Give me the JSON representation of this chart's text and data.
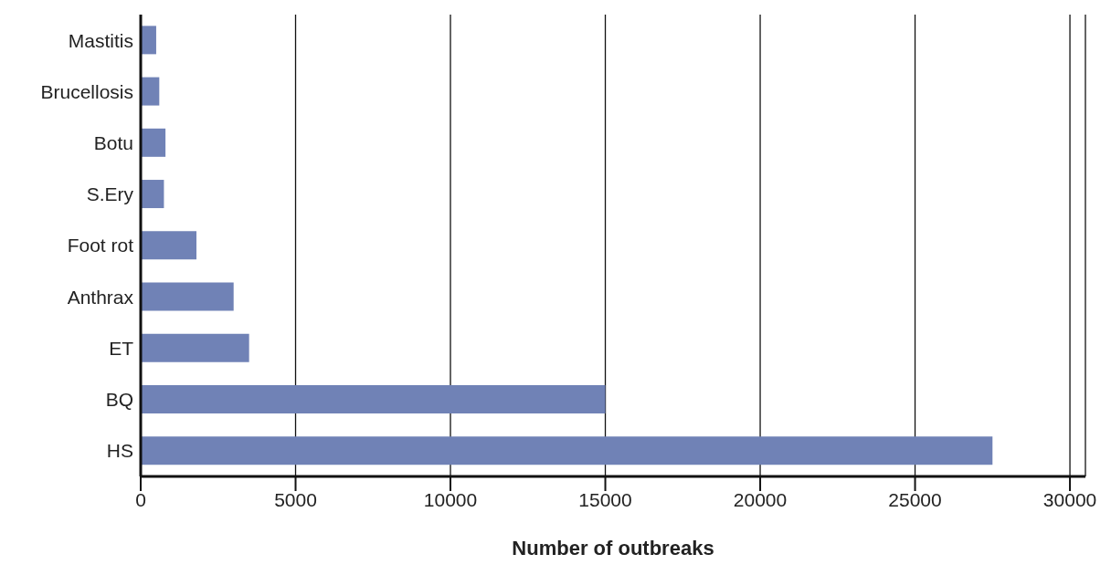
{
  "chart_data": {
    "type": "bar",
    "orientation": "horizontal",
    "xlabel": "Number of outbreaks",
    "categories": [
      "Mastitis",
      "Brucellosis",
      "Botu",
      "S.Ery",
      "Foot rot",
      "Anthrax",
      "ET",
      "BQ",
      "HS"
    ],
    "values": [
      500,
      600,
      800,
      750,
      1800,
      3000,
      3500,
      15000,
      27500
    ],
    "color": "#7082b6",
    "xlim": [
      0,
      30500
    ],
    "xticks": [
      0,
      5000,
      10000,
      15000,
      20000,
      25000,
      30000
    ],
    "grid": "x"
  }
}
